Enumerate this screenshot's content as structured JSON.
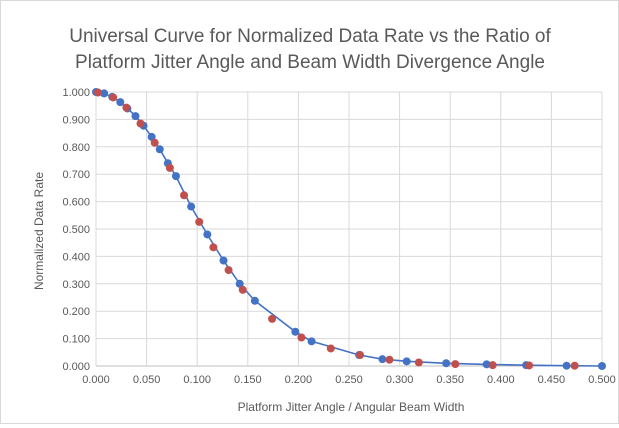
{
  "chart_data": {
    "type": "scatter",
    "title_lines": [
      "Universal Curve for Normalized Data Rate vs the Ratio of",
      "Platform Jitter Angle and Beam Width Divergence Angle"
    ],
    "xlabel": "Platform Jitter Angle / Angular Beam Width",
    "ylabel": "Normalized Data Rate",
    "xlim": [
      0,
      0.5
    ],
    "ylim": [
      0,
      1
    ],
    "x_ticks": [
      "0.000",
      "0.050",
      "0.100",
      "0.150",
      "0.200",
      "0.250",
      "0.300",
      "0.350",
      "0.400",
      "0.450",
      "0.500"
    ],
    "y_ticks": [
      "0.000",
      "0.100",
      "0.200",
      "0.300",
      "0.400",
      "0.500",
      "0.600",
      "0.700",
      "0.800",
      "0.900",
      "1.000"
    ],
    "grid": true,
    "legend": "none",
    "series": [
      {
        "color": "#4472c4",
        "line": true,
        "x": [
          0.0,
          0.008,
          0.016,
          0.024,
          0.031,
          0.039,
          0.047,
          0.055,
          0.063,
          0.071,
          0.079,
          0.094,
          0.11,
          0.126,
          0.142,
          0.157,
          0.197,
          0.213,
          0.26,
          0.283,
          0.307,
          0.346,
          0.386,
          0.425,
          0.465,
          0.5
        ],
        "y": [
          1.0,
          0.995,
          0.982,
          0.963,
          0.94,
          0.912,
          0.877,
          0.836,
          0.791,
          0.74,
          0.693,
          0.582,
          0.48,
          0.385,
          0.3,
          0.238,
          0.125,
          0.09,
          0.04,
          0.025,
          0.017,
          0.01,
          0.006,
          0.003,
          0.001,
          0.0
        ]
      },
      {
        "color": "#c0504d",
        "line": false,
        "x": [
          0.002,
          0.017,
          0.03,
          0.044,
          0.058,
          0.073,
          0.087,
          0.102,
          0.116,
          0.131,
          0.145,
          0.174,
          0.203,
          0.232,
          0.261,
          0.29,
          0.319,
          0.355,
          0.392,
          0.428,
          0.473
        ],
        "y": [
          0.998,
          0.98,
          0.943,
          0.885,
          0.815,
          0.723,
          0.623,
          0.526,
          0.433,
          0.35,
          0.278,
          0.172,
          0.104,
          0.064,
          0.04,
          0.023,
          0.013,
          0.007,
          0.003,
          0.002,
          0.001
        ]
      }
    ]
  }
}
